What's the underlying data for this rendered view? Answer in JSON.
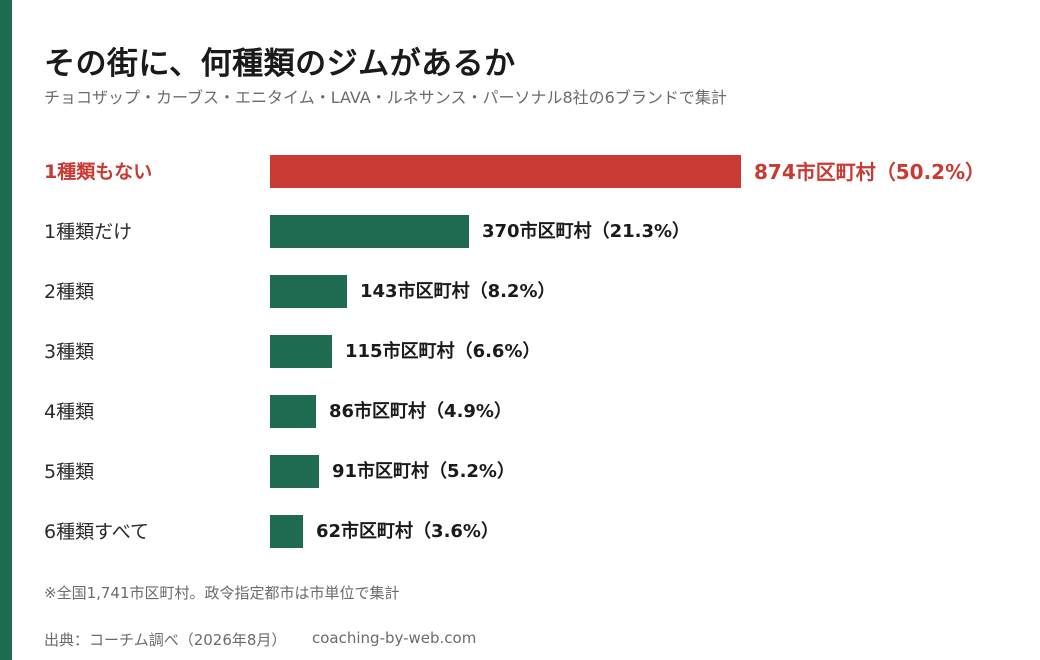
{
  "header": {
    "title": "その街に、何種類のジムがあるか",
    "subtitle": "チョコザップ・カーブス・エニタイム・LAVA・ルネサンス・パーソナル8社の6ブランドで集計"
  },
  "colors": {
    "accent": "#1f6b52",
    "highlight": "#c83a32"
  },
  "chart_data": {
    "type": "bar",
    "orientation": "horizontal",
    "title": "その街に、何種類のジムがあるか",
    "categories": [
      "1種類もない",
      "1種類だけ",
      "2種類",
      "3種類",
      "4種類",
      "5種類",
      "6種類すべて"
    ],
    "values": [
      874,
      370,
      143,
      115,
      86,
      91,
      62
    ],
    "percents": [
      50.2,
      21.3,
      8.2,
      6.6,
      4.9,
      5.2,
      3.6
    ],
    "value_labels": [
      "874市区町村（50.2%）",
      "370市区町村（21.3%）",
      "143市区町村（8.2%）",
      "115市区町村（6.6%）",
      "86市区町村（4.9%）",
      "91市区町村（5.2%）",
      "62市区町村（3.6%）"
    ],
    "highlight_index": 0,
    "unit": "市区町村",
    "xlim": [
      0,
      874
    ],
    "grid": false,
    "legend": "none"
  },
  "footer": {
    "note": "※全国1,741市区町村。政令指定都市は市単位で集計",
    "source": "出典：コーチム調べ（2026年8月）",
    "site": "coaching-by-web.com"
  }
}
